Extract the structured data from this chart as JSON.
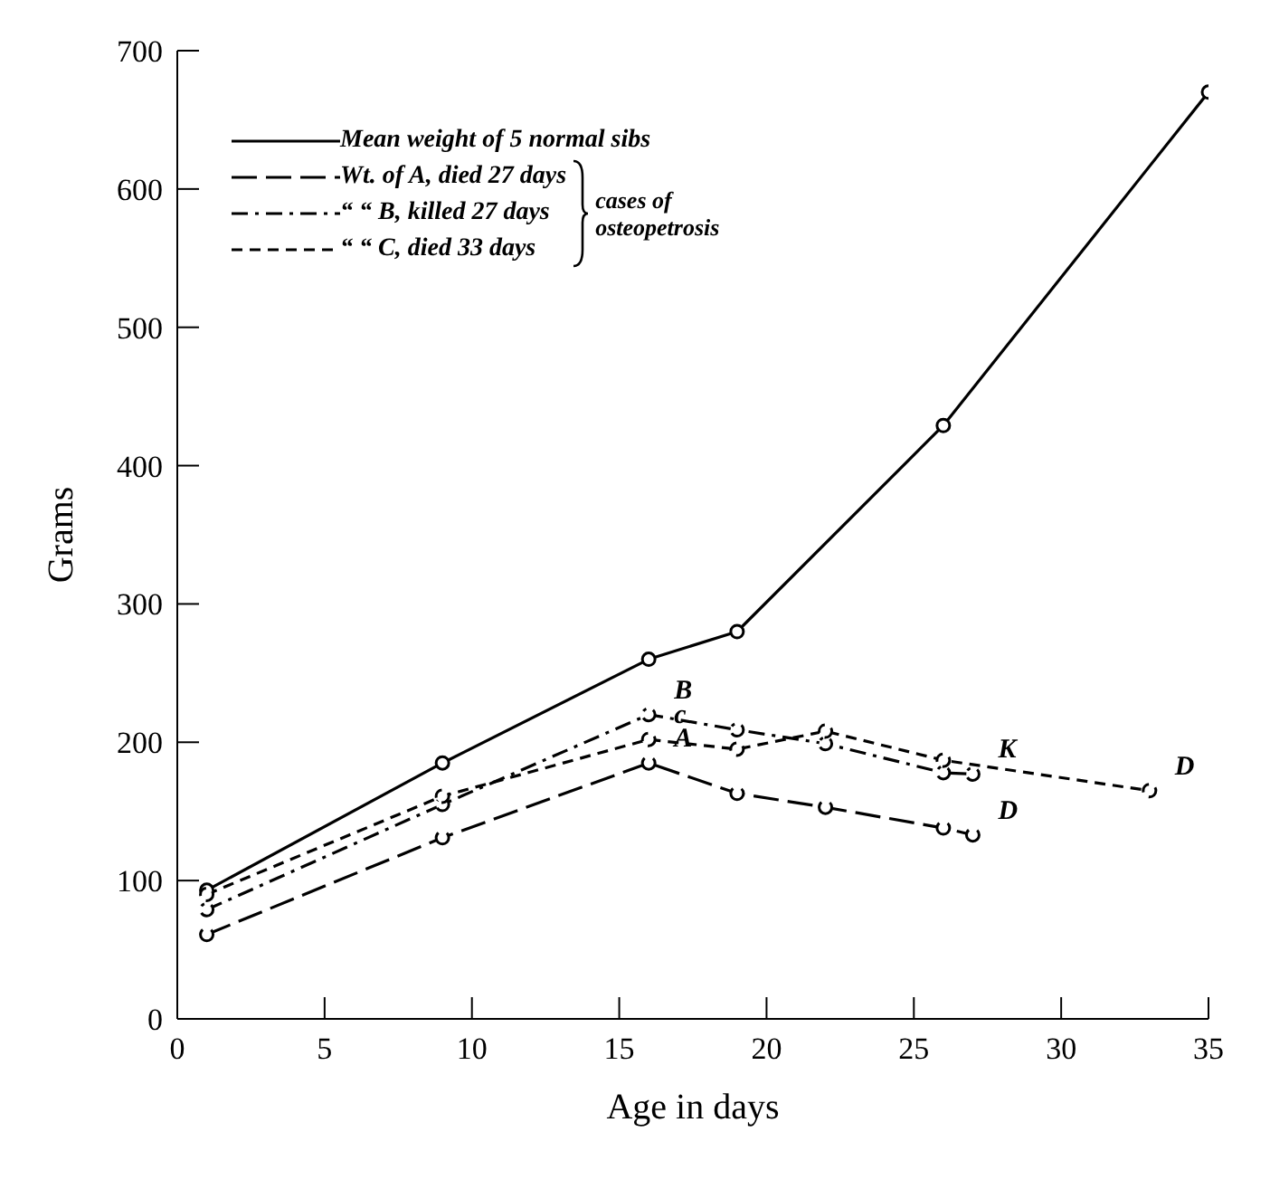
{
  "chart_data": {
    "type": "line",
    "xlabel": "Age in days",
    "ylabel": "Grams",
    "xlim": [
      0,
      35
    ],
    "xticks": [
      0,
      5,
      10,
      15,
      20,
      25,
      30,
      35
    ],
    "ylim": [
      0,
      700
    ],
    "yticks": [
      0,
      100,
      200,
      300,
      400,
      500,
      600,
      700
    ],
    "grid": false,
    "legend": "top left",
    "marker": "circle",
    "series": [
      {
        "name": "Mean weight of 5 normal sibs",
        "color": "#000000",
        "line_style": "solid",
        "x": [
          1,
          9,
          16,
          19,
          26,
          35
        ],
        "values": [
          93,
          185,
          260,
          280,
          429,
          670
        ]
      },
      {
        "name": "Wt. of A, died 27 days",
        "color": "#000000",
        "line_style": "longdash",
        "x": [
          1,
          9,
          16,
          19,
          22,
          26,
          27
        ],
        "values": [
          61,
          131,
          185,
          163,
          153,
          138,
          133
        ]
      },
      {
        "name": "“ “ B, killed 27 days",
        "color": "#000000",
        "line_style": "dashdot",
        "x": [
          1,
          9,
          16,
          19,
          22,
          26,
          27
        ],
        "values": [
          79,
          155,
          220,
          209,
          199,
          178,
          177
        ]
      },
      {
        "name": "“ “ C, died 33 days",
        "color": "#000000",
        "line_style": "dashed",
        "x": [
          1,
          9,
          16,
          19,
          22,
          26,
          33
        ],
        "values": [
          90,
          161,
          202,
          195,
          208,
          187,
          165
        ]
      }
    ],
    "annotations": [
      "cases of osteopetrosis",
      {
        "text": "A",
        "x": 16,
        "y": 185
      },
      {
        "text": "B",
        "x": 16,
        "y": 220
      },
      {
        "text": "c",
        "x": 16,
        "y": 202
      },
      {
        "text": "K",
        "x": 27,
        "y": 177
      },
      {
        "text": "D",
        "x": 27,
        "y": 133
      },
      {
        "text": "D",
        "x": 33,
        "y": 165
      }
    ]
  }
}
